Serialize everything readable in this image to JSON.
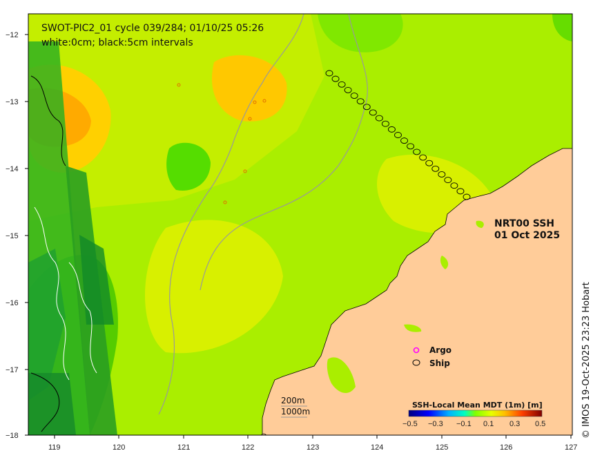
{
  "title_line1": "SWOT-PIC2_01 cycle 039/284; 01/10/25 05:26",
  "title_line2": "white:0cm; black:5cm intervals",
  "product_line1": "NRT00 SSH",
  "product_line2": "01 Oct 2025",
  "credit": "© IMOS 19-Oct-2025 23:23 Hobart",
  "legend": {
    "argo": "Argo",
    "ship": "Ship",
    "argo_color": "#ff00ff",
    "ship_color": "#000000"
  },
  "depth_contours": {
    "shallow": "200m",
    "deep": "1000m"
  },
  "colorbar": {
    "label": "SSH-Local Mean MDT (1m) [m]",
    "ticks": [
      "−0.5",
      "−0.3",
      "−0.1",
      "0.1",
      "0.3",
      "0.5"
    ],
    "colors": [
      "#00007f",
      "#0000ff",
      "#0080ff",
      "#00ffff",
      "#40ff80",
      "#80ff00",
      "#ffff00",
      "#ff8000",
      "#ff0000",
      "#7f0000"
    ]
  },
  "axes": {
    "x_ticks": [
      "119",
      "120",
      "121",
      "122",
      "123",
      "124",
      "125",
      "126",
      "127"
    ],
    "y_ticks": [
      "−12",
      "−13",
      "−14",
      "−15",
      "−16",
      "−17",
      "−18"
    ],
    "x_range": [
      118.6,
      127
    ],
    "y_range": [
      -18,
      -11.75
    ]
  },
  "colors": {
    "land": "#ffcc99",
    "ocean_base": "#aaee00"
  }
}
